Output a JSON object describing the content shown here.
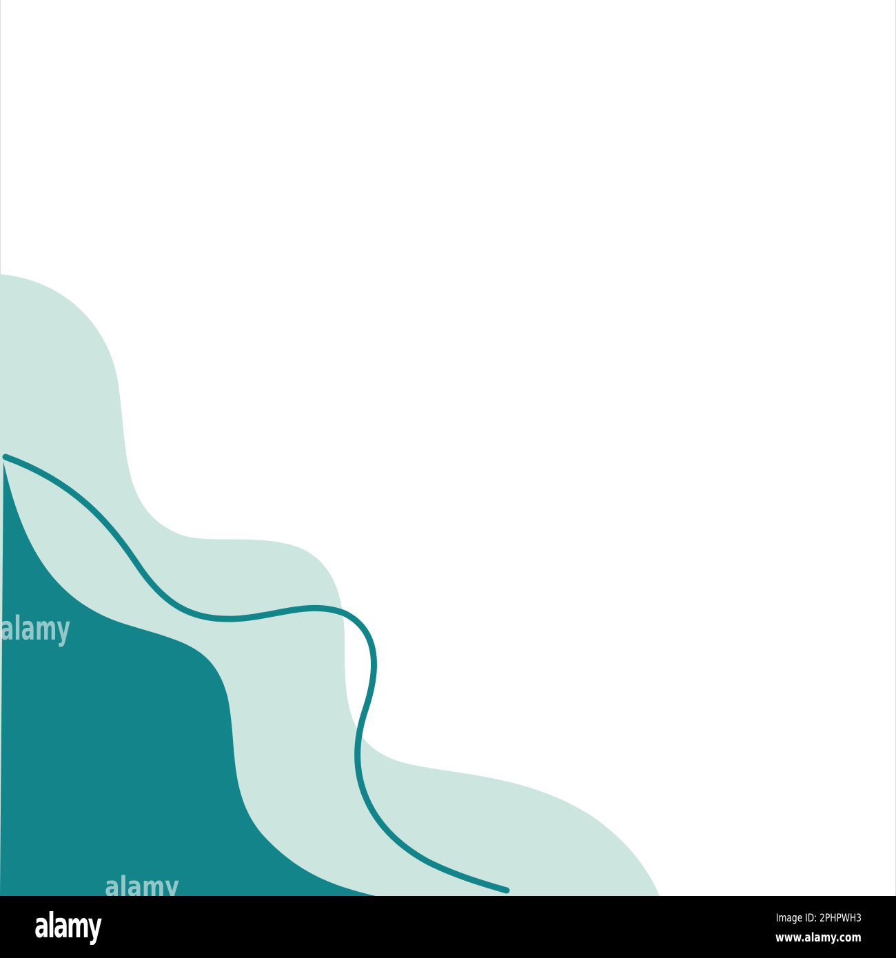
{
  "colors": {
    "light_teal": "#cce5df",
    "dark_teal": "#138489",
    "background": "#ffffff",
    "footer": "#000000"
  },
  "footer": {
    "logo": "alamy",
    "image_id": "Image ID: 2PHPWH3",
    "url": "www.alamy.com"
  },
  "watermark": "alamy"
}
